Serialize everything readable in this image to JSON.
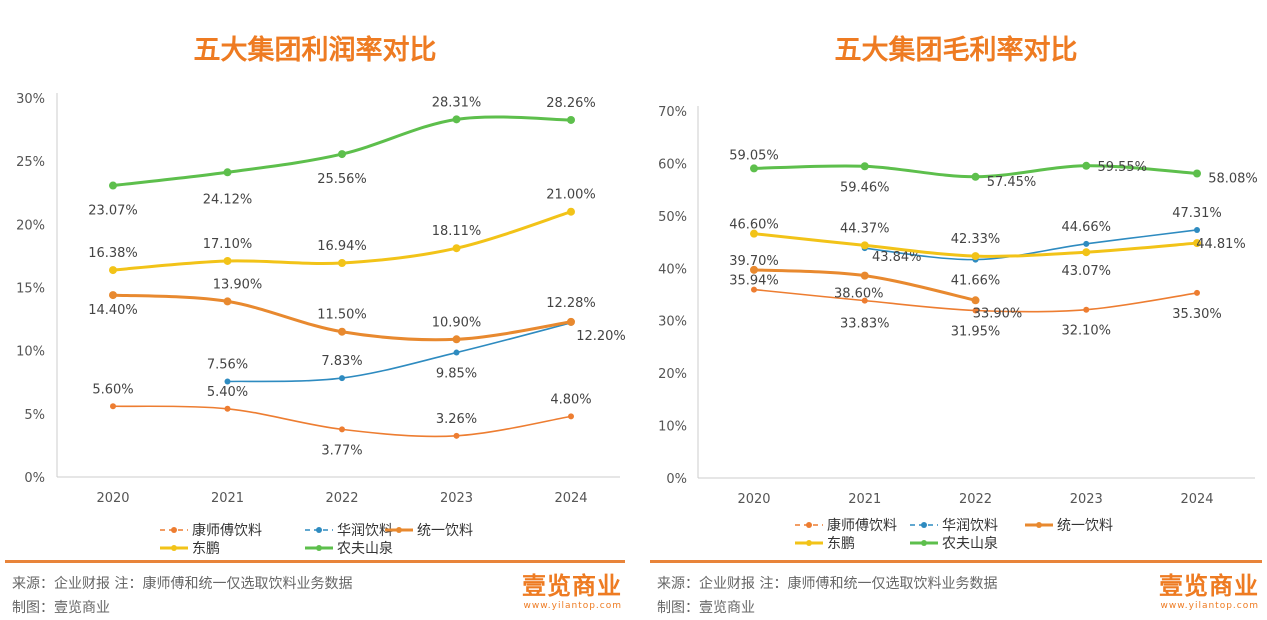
{
  "chart_data": [
    {
      "type": "line",
      "title": "五大集团利润率对比",
      "categories": [
        "2020",
        "2021",
        "2022",
        "2023",
        "2024"
      ],
      "ylim": [
        0,
        30
      ],
      "yticks": [
        "0%",
        "5%",
        "10%",
        "15%",
        "20%",
        "25%",
        "30%"
      ],
      "grid": false,
      "legend_position": "bottom",
      "series": [
        {
          "name": "康师傅饮料",
          "color": "#ed7d31",
          "style": "thin",
          "values": [
            5.6,
            5.4,
            3.77,
            3.26,
            4.8
          ],
          "labels": [
            "5.60%",
            "5.40%",
            "3.77%",
            "3.26%",
            "4.80%"
          ]
        },
        {
          "name": "华润饮料",
          "color": "#2e8bc0",
          "style": "thin",
          "values": [
            null,
            7.56,
            7.83,
            9.85,
            12.2
          ],
          "labels": [
            "",
            "7.56%",
            "7.83%",
            "9.85%",
            "12.20%"
          ]
        },
        {
          "name": "统一饮料",
          "color": "#e8892f",
          "style": "thick",
          "values": [
            14.4,
            13.9,
            11.5,
            10.9,
            12.28
          ],
          "labels": [
            "14.40%",
            "13.90%",
            "11.50%",
            "10.90%",
            "12.28%"
          ]
        },
        {
          "name": "东鹏",
          "color": "#f2c318",
          "style": "thick",
          "values": [
            16.38,
            17.1,
            16.94,
            18.11,
            21.0
          ],
          "labels": [
            "16.38%",
            "17.10%",
            "16.94%",
            "18.11%",
            "21.00%"
          ]
        },
        {
          "name": "农夫山泉",
          "color": "#5dbf4c",
          "style": "thick",
          "values": [
            23.07,
            24.12,
            25.56,
            28.31,
            28.26
          ],
          "labels": [
            "23.07%",
            "24.12%",
            "25.56%",
            "28.31%",
            "28.26%"
          ]
        }
      ]
    },
    {
      "type": "line",
      "title": "五大集团毛利率对比",
      "categories": [
        "2020",
        "2021",
        "2022",
        "2023",
        "2024"
      ],
      "ylim": [
        0,
        70
      ],
      "yticks": [
        "0%",
        "10%",
        "20%",
        "30%",
        "40%",
        "50%",
        "60%",
        "70%"
      ],
      "grid": false,
      "legend_position": "bottom",
      "series": [
        {
          "name": "康师傅饮料",
          "color": "#ed7d31",
          "style": "thin",
          "values": [
            35.94,
            33.83,
            31.95,
            32.1,
            35.3
          ],
          "labels": [
            "35.94%",
            "33.83%",
            "31.95%",
            "32.10%",
            "35.30%"
          ]
        },
        {
          "name": "华润饮料",
          "color": "#2e8bc0",
          "style": "thin",
          "values": [
            null,
            43.84,
            41.66,
            44.66,
            47.31
          ],
          "labels": [
            "",
            "43.84%",
            "41.66%",
            "44.66%",
            "47.31%"
          ]
        },
        {
          "name": "统一饮料",
          "color": "#e8892f",
          "style": "thick",
          "values": [
            39.7,
            38.6,
            33.9,
            null,
            null
          ],
          "labels": [
            "39.70%",
            "38.60%",
            "33.90%",
            "",
            ""
          ]
        },
        {
          "name": "东鹏",
          "color": "#f2c318",
          "style": "thick",
          "values": [
            46.6,
            44.37,
            42.33,
            43.07,
            44.81
          ],
          "labels": [
            "46.60%",
            "44.37%",
            "42.33%",
            "43.07%",
            "44.81%"
          ]
        },
        {
          "name": "农夫山泉",
          "color": "#5dbf4c",
          "style": "thick",
          "values": [
            59.05,
            59.46,
            57.45,
            59.55,
            58.08
          ],
          "labels": [
            "59.05%",
            "59.46%",
            "57.45%",
            "59.55%",
            "58.08%"
          ]
        }
      ]
    }
  ],
  "footer": {
    "source": "来源：企业财报  注：康师傅和统一仅选取饮料业务数据",
    "maker": "制图：壹览商业",
    "logo": "壹览商业",
    "logo_url": "www.yilantop.com"
  }
}
